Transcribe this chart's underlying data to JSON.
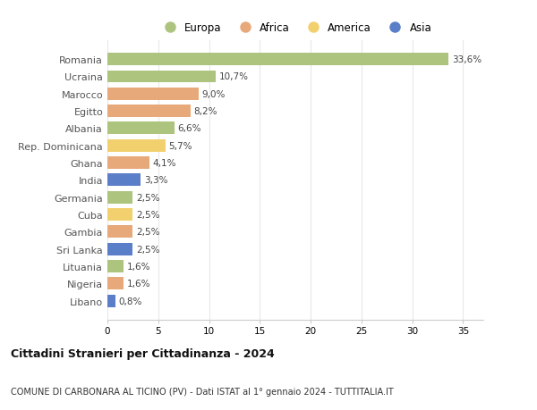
{
  "countries": [
    "Romania",
    "Ucraina",
    "Marocco",
    "Egitto",
    "Albania",
    "Rep. Dominicana",
    "Ghana",
    "India",
    "Germania",
    "Cuba",
    "Gambia",
    "Sri Lanka",
    "Lituania",
    "Nigeria",
    "Libano"
  ],
  "values": [
    33.6,
    10.7,
    9.0,
    8.2,
    6.6,
    5.7,
    4.1,
    3.3,
    2.5,
    2.5,
    2.5,
    2.5,
    1.6,
    1.6,
    0.8
  ],
  "labels": [
    "33,6%",
    "10,7%",
    "9,0%",
    "8,2%",
    "6,6%",
    "5,7%",
    "4,1%",
    "3,3%",
    "2,5%",
    "2,5%",
    "2,5%",
    "2,5%",
    "1,6%",
    "1,6%",
    "0,8%"
  ],
  "colors": [
    "#adc47e",
    "#adc47e",
    "#e8a97a",
    "#e8a97a",
    "#adc47e",
    "#f2d06e",
    "#e8a97a",
    "#5b7ec9",
    "#adc47e",
    "#f2d06e",
    "#e8a97a",
    "#5b7ec9",
    "#adc47e",
    "#e8a97a",
    "#5b7ec9"
  ],
  "legend_labels": [
    "Europa",
    "Africa",
    "America",
    "Asia"
  ],
  "legend_colors": [
    "#adc47e",
    "#e8a97a",
    "#f2d06e",
    "#5b7ec9"
  ],
  "title": "Cittadini Stranieri per Cittadinanza - 2024",
  "subtitle": "COMUNE DI CARBONARA AL TICINO (PV) - Dati ISTAT al 1° gennaio 2024 - TUTTITALIA.IT",
  "xlim": [
    0,
    37
  ],
  "xticks": [
    0,
    5,
    10,
    15,
    20,
    25,
    30,
    35
  ],
  "background_color": "#ffffff",
  "grid_color": "#e8e8e8",
  "bar_height": 0.72
}
